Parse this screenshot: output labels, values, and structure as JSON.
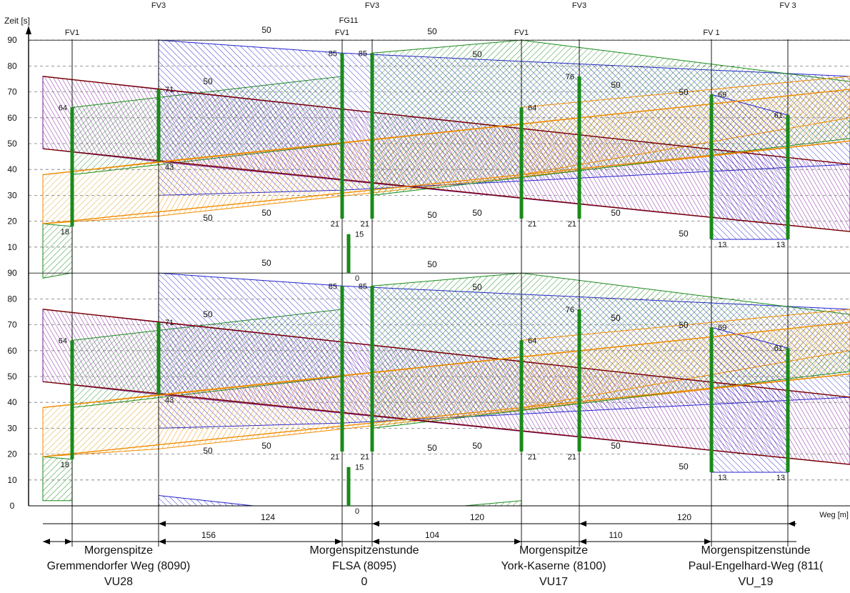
{
  "chart_data": {
    "type": "time-distance diagram (green wave)",
    "y_axis_label": "Zeit [s]",
    "x_axis_label": "Weg [m]",
    "y_ticks": [
      0,
      10,
      20,
      30,
      40,
      50,
      60,
      70,
      80,
      90
    ],
    "cycle_time_s": 90,
    "grid": "dashed horizontal lines every 10 s",
    "top_labels": [
      "FV3",
      "FV3",
      "FV3",
      "FV 3"
    ],
    "extra_top_label": "FG11",
    "signal_heads": [
      {
        "label": "FV1",
        "green_from": 18,
        "green_to": 64
      },
      {
        "label": "FV3",
        "green_from": 43,
        "green_to": 71
      },
      {
        "label": "FV1",
        "green_from": 21,
        "green_to": 85
      },
      {
        "label": "FG11",
        "green_from": 0,
        "green_to": 15
      },
      {
        "label": "FV3",
        "green_from": 21,
        "green_to": 85
      },
      {
        "label": "FV1",
        "green_from": 21,
        "green_to": 64
      },
      {
        "label": "FV3",
        "green_from": 21,
        "green_to": 76
      },
      {
        "label": "FV 1",
        "green_from": 13,
        "green_to": 69
      },
      {
        "label": "FV 3",
        "green_from": 13,
        "green_to": 61
      }
    ],
    "speed_labels": [
      "50"
    ],
    "distances_upper": [
      "124",
      "120",
      "120"
    ],
    "distances_lower": [
      "156",
      "104",
      "110"
    ]
  },
  "junctions": [
    {
      "period": "Morgenspitze",
      "name": "Gremmendorfer Weg (8090)",
      "id": "VU28"
    },
    {
      "period": "Morgenspitzenstunde",
      "name": "FLSA (8095)",
      "id": "0"
    },
    {
      "period": "Morgenspitze",
      "name": "York-Kaserne (8100)",
      "id": "VU17"
    },
    {
      "period": "Morgenspitzenstunde",
      "name": "Paul-Engelhard-Weg (811(",
      "id": "VU_19"
    }
  ],
  "colors": {
    "green": "#1b8a1b",
    "blue": "#2222cc",
    "purple": "#7a1a9a",
    "orange": "#f08c00",
    "yellow": "#d8c23a",
    "darkred": "#7a0000",
    "signal": "#1a8a1a"
  }
}
